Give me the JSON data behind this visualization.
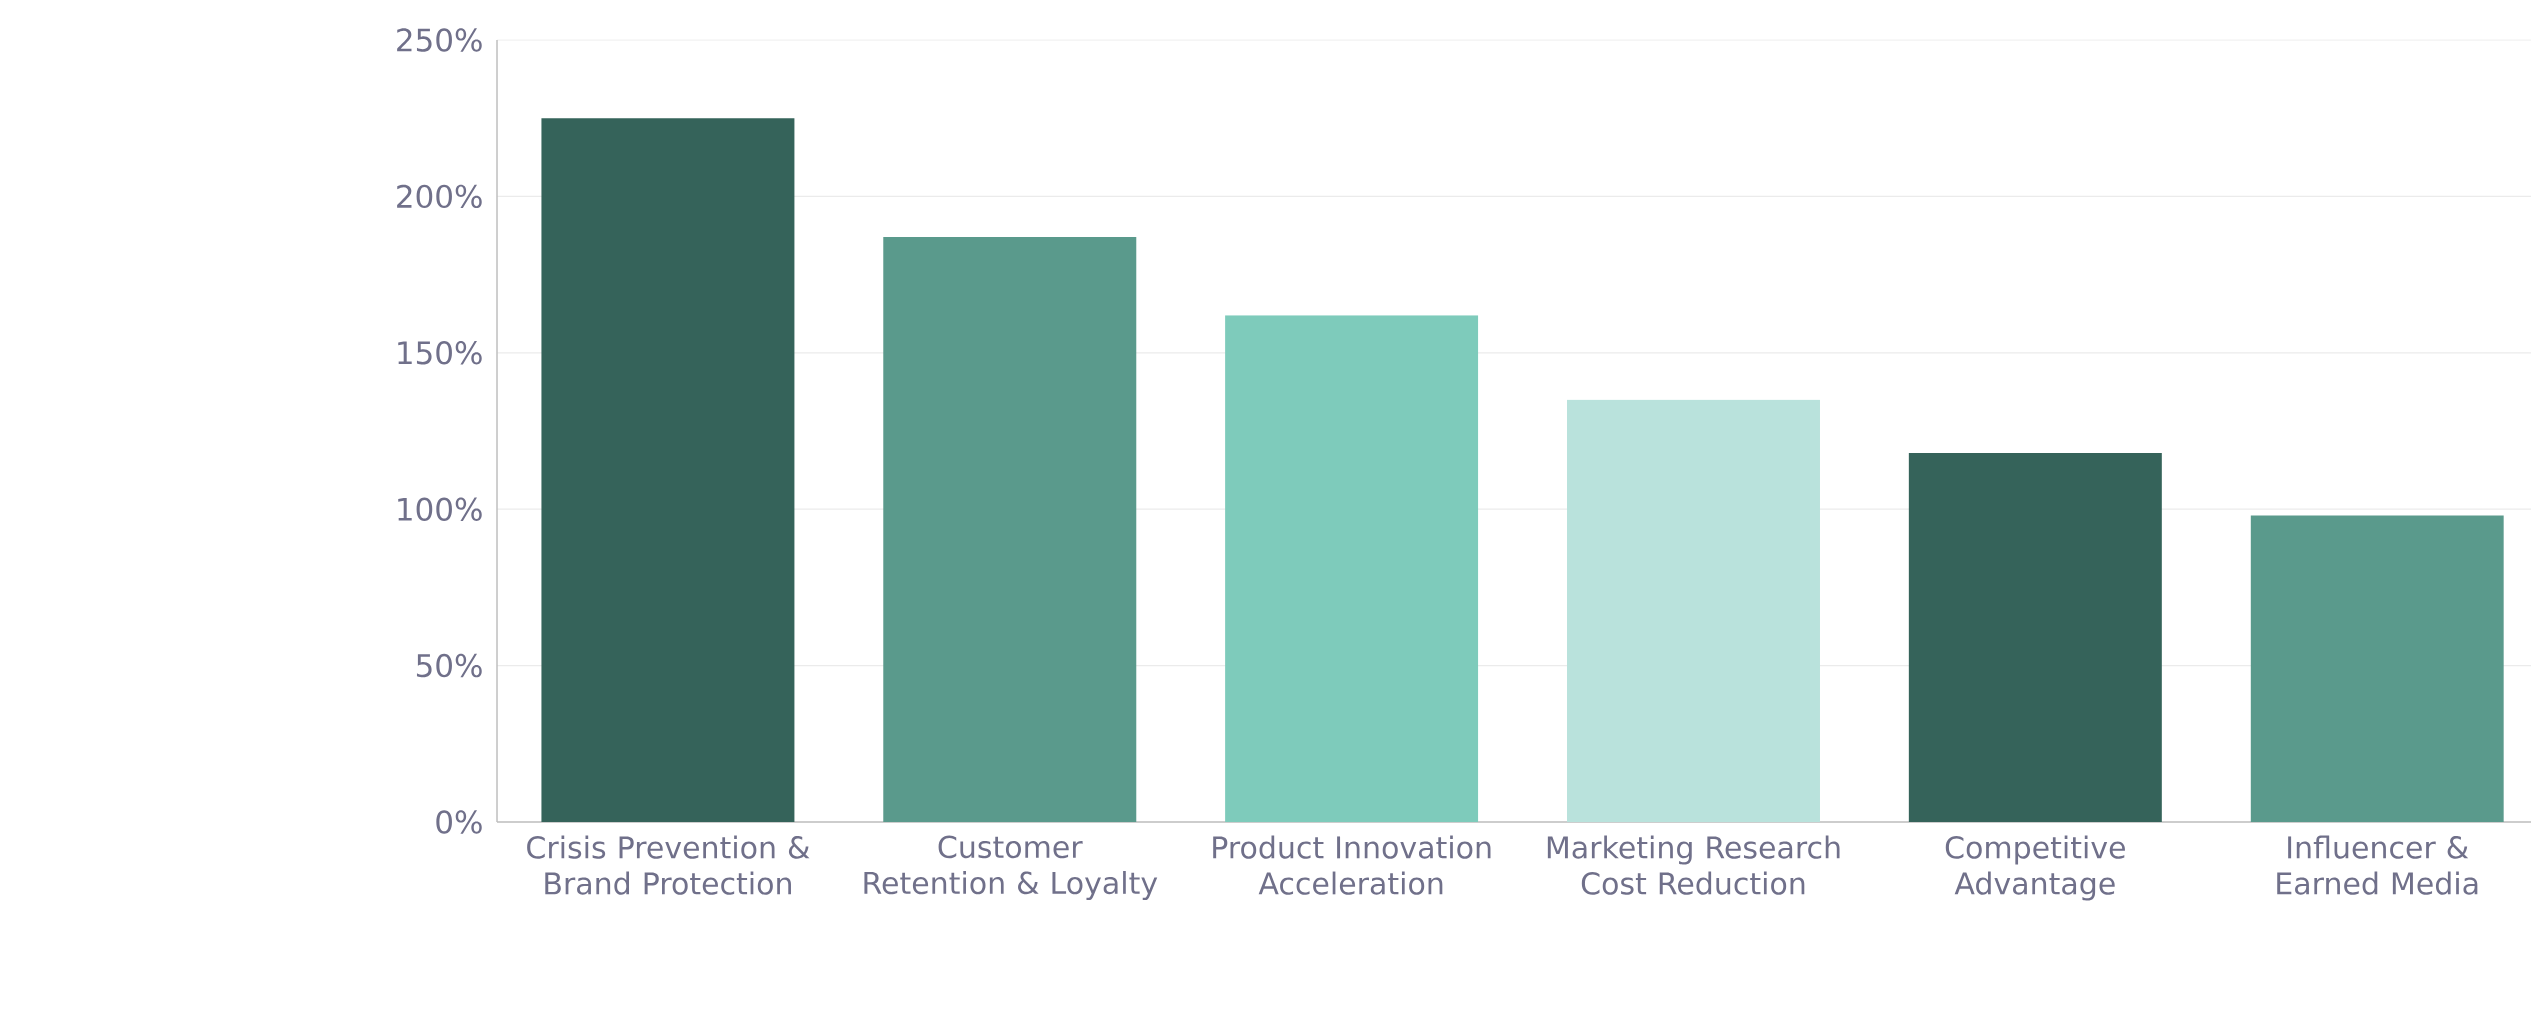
{
  "chart_data": {
    "type": "bar",
    "categories": [
      "Crisis Prevention & Brand Protection",
      "Customer Retention & Loyalty",
      "Product Innovation Acceleration",
      "Marketing Research Cost Reduction",
      "Competitive Advantage",
      "Influencer & Earned Media"
    ],
    "values": [
      225,
      187,
      162,
      135,
      118,
      98
    ],
    "colors": [
      "#35635a",
      "#5a9a8c",
      "#7ecbbb",
      "#b9e2dc",
      "#35635a",
      "#5a9a8c"
    ],
    "ylim": [
      0,
      250
    ],
    "yticks": [
      {
        "value": 0,
        "label": "0%"
      },
      {
        "value": 50,
        "label": "50%"
      },
      {
        "value": 100,
        "label": "100%"
      },
      {
        "value": 150,
        "label": "150%"
      },
      {
        "value": 200,
        "label": "200%"
      },
      {
        "value": 250,
        "label": "250%"
      }
    ],
    "grid": "y"
  }
}
